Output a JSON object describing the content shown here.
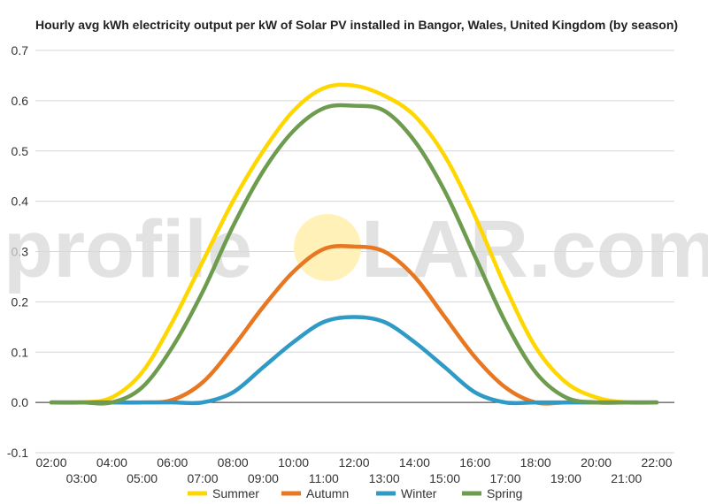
{
  "chart_data": {
    "type": "line",
    "title": "Hourly avg kWh electricity output per kW of Solar PV installed in Bangor, Wales, United Kingdom (by season)",
    "xlabel": "",
    "ylabel": "",
    "ylim": [
      -0.1,
      0.7
    ],
    "yticks": [
      "-0.1",
      "0.0",
      "0.1",
      "0.2",
      "0.3",
      "0.4",
      "0.5",
      "0.6",
      "0.7"
    ],
    "grid": true,
    "legend_position": "bottom",
    "x": [
      "02:00",
      "03:00",
      "04:00",
      "05:00",
      "06:00",
      "07:00",
      "08:00",
      "09:00",
      "10:00",
      "11:00",
      "12:00",
      "13:00",
      "14:00",
      "15:00",
      "16:00",
      "17:00",
      "18:00",
      "19:00",
      "20:00",
      "21:00",
      "22:00"
    ],
    "series": [
      {
        "name": "Summer",
        "color": "#FFD700",
        "values": [
          0.0,
          0.0,
          0.01,
          0.06,
          0.16,
          0.28,
          0.4,
          0.5,
          0.58,
          0.625,
          0.63,
          0.61,
          0.57,
          0.49,
          0.37,
          0.23,
          0.11,
          0.04,
          0.01,
          0.0,
          0.0
        ]
      },
      {
        "name": "Autumn",
        "color": "#E87722",
        "values": [
          0.0,
          0.0,
          0.0,
          0.0,
          0.005,
          0.04,
          0.11,
          0.19,
          0.26,
          0.305,
          0.31,
          0.3,
          0.25,
          0.17,
          0.09,
          0.03,
          0.0,
          0.0,
          0.0,
          0.0,
          0.0
        ]
      },
      {
        "name": "Winter",
        "color": "#2E9AC5",
        "values": [
          0.0,
          0.0,
          0.0,
          0.0,
          0.0,
          0.0,
          0.02,
          0.07,
          0.12,
          0.16,
          0.17,
          0.16,
          0.12,
          0.07,
          0.02,
          0.0,
          0.0,
          0.0,
          0.0,
          0.0,
          0.0
        ]
      },
      {
        "name": "Spring",
        "color": "#6E9C4F",
        "values": [
          0.0,
          0.0,
          0.0,
          0.03,
          0.11,
          0.22,
          0.35,
          0.46,
          0.54,
          0.585,
          0.59,
          0.58,
          0.52,
          0.42,
          0.29,
          0.16,
          0.06,
          0.01,
          0.0,
          0.0,
          0.0
        ]
      }
    ]
  },
  "watermark": {
    "left": "profile",
    "right": "LAR.com",
    "sun_color": "#FFF1B8"
  }
}
